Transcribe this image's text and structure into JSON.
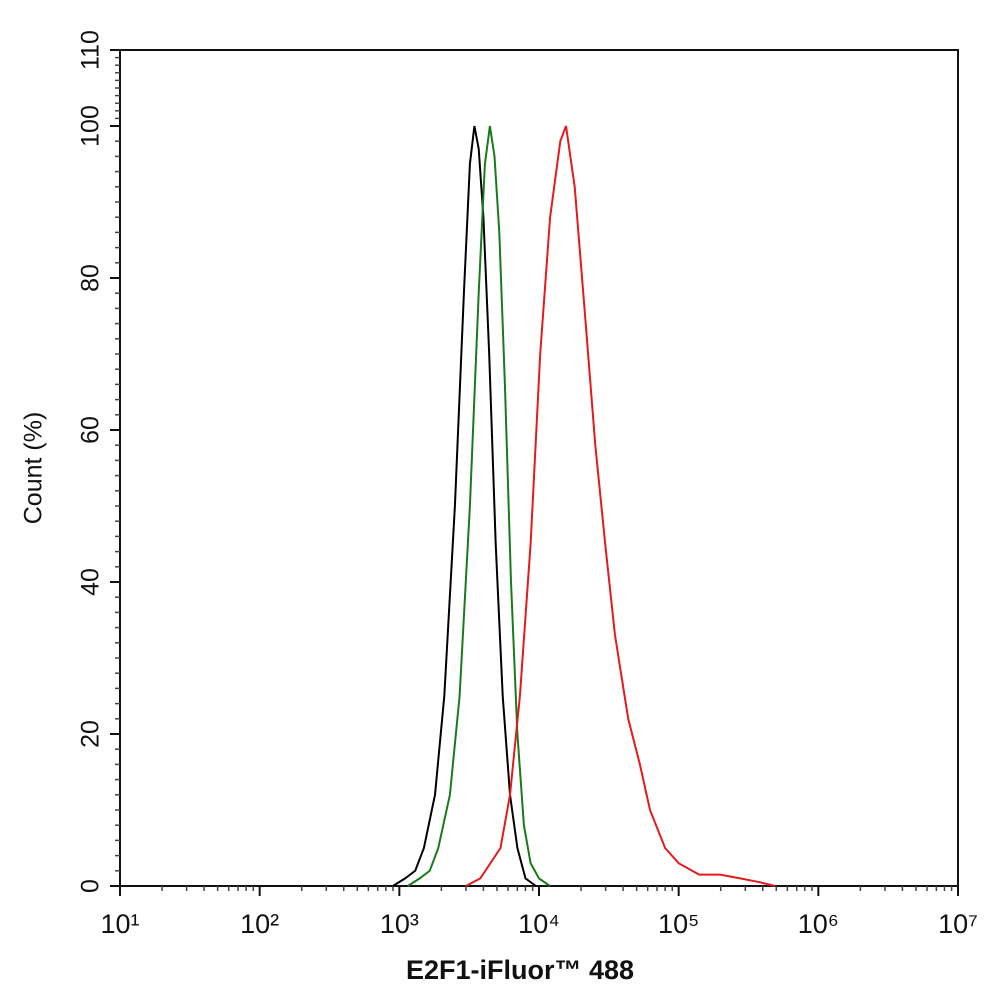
{
  "chart_data": {
    "type": "line",
    "x_label": "E2F1-iFluor™ 488",
    "y_label": "Count (%)",
    "xscale": "log",
    "xlim": [
      10,
      10000000
    ],
    "xticks": [
      {
        "value": 10,
        "label": "10¹"
      },
      {
        "value": 100,
        "label": "10²"
      },
      {
        "value": 1000,
        "label": "10³"
      },
      {
        "value": 10000,
        "label": "10⁴"
      },
      {
        "value": 100000,
        "label": "10⁵"
      },
      {
        "value": 1000000,
        "label": "10⁶"
      },
      {
        "value": 10000000,
        "label": "10⁷"
      }
    ],
    "ylim": [
      0,
      110
    ],
    "yticks": [
      0,
      20,
      40,
      60,
      80,
      100,
      110
    ],
    "series": [
      {
        "color": "#000000",
        "x": [
          900,
          1100,
          1300,
          1500,
          1800,
          2100,
          2500,
          2900,
          3200,
          3450,
          3700,
          4000,
          4400,
          4900,
          5500,
          6200,
          7000,
          8000,
          9500
        ],
        "values": [
          0,
          1,
          2,
          5,
          12,
          25,
          50,
          78,
          95,
          100,
          97,
          88,
          70,
          45,
          25,
          12,
          5,
          1,
          0
        ]
      },
      {
        "color": "#1a7a1a",
        "x": [
          1150,
          1400,
          1650,
          1900,
          2300,
          2700,
          3200,
          3700,
          4100,
          4450,
          4800,
          5200,
          5700,
          6300,
          7000,
          7800,
          8700,
          10000,
          12000
        ],
        "values": [
          0,
          1,
          2,
          5,
          12,
          25,
          50,
          78,
          95,
          100,
          96,
          86,
          66,
          40,
          20,
          8,
          3,
          1,
          0
        ]
      },
      {
        "color": "#e41a1c",
        "x": [
          3000,
          3800,
          5300,
          6200,
          7300,
          8700,
          10200,
          12000,
          14200,
          15600,
          18000,
          21400,
          25300,
          29800,
          35000,
          43500,
          52800,
          62300,
          80000,
          100000,
          140000,
          198000,
          276000,
          380000,
          490000
        ],
        "values": [
          0,
          1,
          5,
          12,
          25,
          45,
          70,
          88,
          98,
          100,
          92,
          75,
          58,
          45,
          33,
          22,
          16,
          10,
          5,
          3,
          1.5,
          1.5,
          1,
          0.5,
          0
        ]
      }
    ]
  }
}
